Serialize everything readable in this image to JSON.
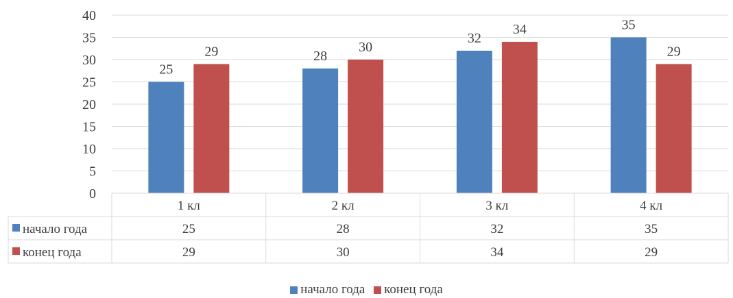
{
  "chart_data": {
    "type": "bar",
    "categories": [
      "1 кл",
      "2 кл",
      "3 кл",
      "4 кл"
    ],
    "series": [
      {
        "name": "начало года",
        "values": [
          25,
          28,
          32,
          35
        ],
        "color": "#4F81BD"
      },
      {
        "name": "конец года",
        "values": [
          29,
          30,
          34,
          29
        ],
        "color": "#C0504D"
      }
    ],
    "ylim": [
      0,
      40
    ],
    "yticks": [
      0,
      5,
      10,
      15,
      20,
      25,
      30,
      35,
      40
    ],
    "grid": true,
    "data_table": true,
    "legend_position": "bottom"
  }
}
